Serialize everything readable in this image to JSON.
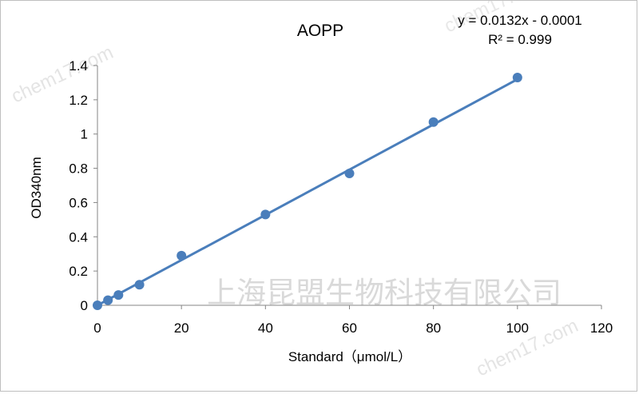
{
  "chart_data": {
    "type": "scatter",
    "title": "AOPP",
    "xlabel": "Standard（μmol/L）",
    "ylabel": "OD340nm",
    "xlim": [
      0,
      120
    ],
    "ylim": [
      0,
      1.4
    ],
    "x_ticks": [
      "0",
      "20",
      "40",
      "60",
      "80",
      "100",
      "120"
    ],
    "y_ticks": [
      "0",
      "0.2",
      "0.4",
      "0.6",
      "0.8",
      "1",
      "1.2",
      "1.4"
    ],
    "grid": false,
    "legend": "none",
    "series": [
      {
        "x": [
          0,
          2.5,
          5,
          10,
          20,
          40,
          60,
          80,
          100
        ],
        "y": [
          0.0,
          0.03,
          0.06,
          0.12,
          0.29,
          0.53,
          0.77,
          1.07,
          1.33
        ],
        "color": "#4a7ebb"
      }
    ],
    "trendline": {
      "slope": 0.0132,
      "intercept": -0.0001,
      "x_range": [
        0,
        100
      ],
      "color": "#4a7ebb"
    },
    "annotations": {
      "equation": "y = 0.0132x - 0.0001",
      "r_squared": "R² = 0.999"
    }
  },
  "watermark": {
    "company": "上海昆盟生物科技有限公司",
    "site": "chem17.com"
  }
}
